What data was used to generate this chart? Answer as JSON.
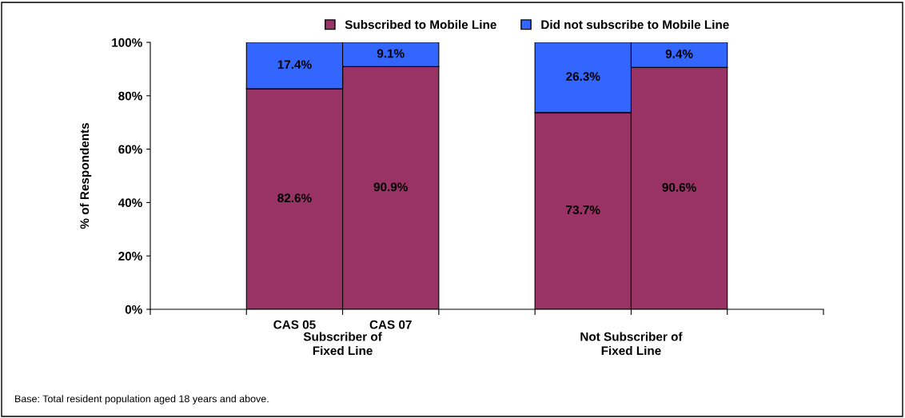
{
  "chart_data": {
    "type": "bar",
    "stacked": true,
    "ylabel": "% of Respondents",
    "categories": [
      null,
      "CAS 05",
      "CAS 07",
      null,
      null,
      null,
      null
    ],
    "series": [
      {
        "name": "Subscribed to Mobile Line",
        "color": "#993366",
        "values": [
          null,
          82.6,
          90.9,
          null,
          73.7,
          90.6,
          null
        ],
        "value_labels": [
          null,
          "82.6%",
          "90.9%",
          null,
          "73.7%",
          "90.6%",
          null
        ]
      },
      {
        "name": "Did not subscribe to Mobile Line",
        "color": "#3366ff",
        "values": [
          null,
          17.4,
          9.1,
          null,
          26.3,
          9.4,
          null
        ],
        "value_labels": [
          null,
          "17.4%",
          "9.1%",
          null,
          "26.3%",
          "9.4%",
          null
        ]
      }
    ],
    "ylim": [
      0,
      100
    ],
    "yticks": [
      {
        "value": 0,
        "label": "0%"
      },
      {
        "value": 20,
        "label": "20%"
      },
      {
        "value": 40,
        "label": "40%"
      },
      {
        "value": 60,
        "label": "60%"
      },
      {
        "value": 80,
        "label": "80%"
      },
      {
        "value": 100,
        "label": "100%"
      }
    ],
    "legend": "top",
    "grid": false,
    "annotations": [
      "Subscriber of\nFixed Line",
      "Not Subscriber of\nFixed Line",
      "Base: Total resident population aged 18 years and above."
    ]
  }
}
